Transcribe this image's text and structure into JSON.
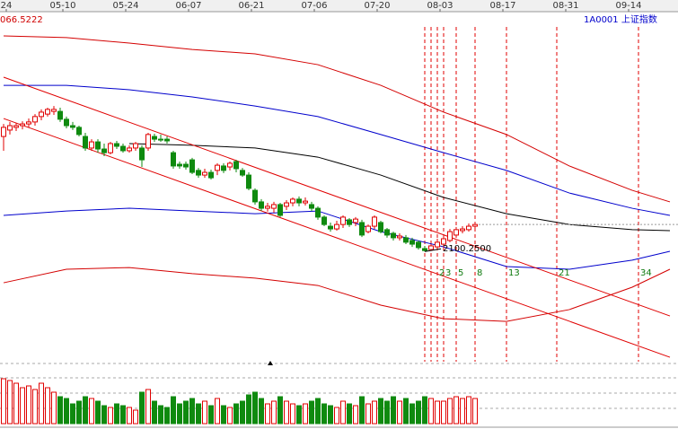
{
  "chart_data": {
    "type": "candlestick",
    "high_label": "066.5222",
    "index_name": "1A0001 上证指数",
    "low_label": "2100.2500",
    "ylim": [
      1663,
      3086.5
    ],
    "open": [
      2568,
      2594,
      2605,
      2612,
      2619,
      2627,
      2649,
      2659,
      2670,
      2670,
      2638,
      2612,
      2605,
      2568,
      2521,
      2546,
      2517,
      2502,
      2539,
      2528,
      2510,
      2521,
      2521,
      2521,
      2568,
      2557,
      2557,
      2502,
      2455,
      2455,
      2473,
      2430,
      2411,
      2422,
      2430,
      2448,
      2444,
      2466,
      2430,
      2411,
      2349,
      2302,
      2276,
      2276,
      2291,
      2284,
      2298,
      2313,
      2298,
      2291,
      2276,
      2240,
      2203,
      2192,
      2210,
      2229,
      2218,
      2218,
      2181,
      2203,
      2218,
      2189,
      2174,
      2156,
      2156,
      2145,
      2138,
      2112,
      2108,
      2119,
      2130,
      2145,
      2167,
      2185,
      2189,
      2203
    ],
    "high": [
      2619,
      2627,
      2623,
      2630,
      2641,
      2659,
      2678,
      2685,
      2692,
      2685,
      2649,
      2627,
      2612,
      2583,
      2557,
      2557,
      2539,
      2546,
      2550,
      2539,
      2532,
      2546,
      2532,
      2583,
      2579,
      2576,
      2568,
      2510,
      2466,
      2466,
      2481,
      2440,
      2437,
      2433,
      2459,
      2459,
      2466,
      2473,
      2440,
      2422,
      2357,
      2313,
      2298,
      2302,
      2298,
      2309,
      2320,
      2324,
      2320,
      2302,
      2284,
      2247,
      2218,
      2225,
      2247,
      2236,
      2240,
      2229,
      2210,
      2247,
      2225,
      2196,
      2181,
      2174,
      2167,
      2156,
      2145,
      2123,
      2130,
      2152,
      2167,
      2192,
      2200,
      2203,
      2214,
      2218
    ],
    "low": [
      2510,
      2576,
      2590,
      2597,
      2605,
      2612,
      2634,
      2649,
      2656,
      2627,
      2601,
      2594,
      2568,
      2510,
      2510,
      2502,
      2488,
      2495,
      2517,
      2502,
      2502,
      2510,
      2444,
      2510,
      2546,
      2546,
      2539,
      2437,
      2437,
      2433,
      2415,
      2400,
      2400,
      2393,
      2411,
      2419,
      2430,
      2422,
      2404,
      2349,
      2291,
      2265,
      2262,
      2258,
      2240,
      2269,
      2284,
      2284,
      2287,
      2265,
      2229,
      2203,
      2181,
      2185,
      2196,
      2200,
      2203,
      2159,
      2174,
      2192,
      2174,
      2156,
      2145,
      2145,
      2130,
      2119,
      2108,
      2100.25,
      2104,
      2108,
      2119,
      2138,
      2156,
      2174,
      2181,
      2196
    ],
    "close": [
      2605,
      2612,
      2612,
      2619,
      2627,
      2649,
      2667,
      2678,
      2678,
      2638,
      2612,
      2605,
      2576,
      2521,
      2546,
      2517,
      2502,
      2539,
      2528,
      2510,
      2521,
      2539,
      2473,
      2576,
      2557,
      2555,
      2550,
      2448,
      2448,
      2444,
      2422,
      2411,
      2422,
      2400,
      2451,
      2430,
      2459,
      2437,
      2411,
      2357,
      2302,
      2276,
      2284,
      2291,
      2247,
      2298,
      2313,
      2298,
      2305,
      2276,
      2240,
      2210,
      2192,
      2210,
      2240,
      2210,
      2232,
      2167,
      2203,
      2240,
      2181,
      2167,
      2156,
      2163,
      2138,
      2130,
      2116,
      2104,
      2123,
      2138,
      2152,
      2181,
      2189,
      2192,
      2203,
      2210
    ],
    "up_color": "#e00000",
    "down_color": "#0f8a0f",
    "volume": [
      50,
      48,
      45,
      40,
      42,
      38,
      45,
      40,
      35,
      30,
      28,
      22,
      25,
      30,
      28,
      25,
      20,
      18,
      22,
      20,
      18,
      15,
      35,
      38,
      25,
      20,
      18,
      30,
      22,
      25,
      28,
      22,
      25,
      20,
      28,
      20,
      18,
      22,
      25,
      32,
      35,
      28,
      22,
      25,
      30,
      25,
      22,
      20,
      22,
      25,
      28,
      22,
      20,
      18,
      25,
      22,
      20,
      30,
      22,
      25,
      28,
      25,
      30,
      25,
      28,
      22,
      25,
      30,
      28,
      25,
      25,
      28,
      30,
      28,
      30,
      28
    ],
    "vlim": [
      0,
      55
    ],
    "date_ticks": [
      {
        "value": 0,
        "label": "24"
      },
      {
        "value": 9,
        "label": "05-10"
      },
      {
        "value": 19,
        "label": "05-24"
      },
      {
        "value": 29,
        "label": "06-07"
      },
      {
        "value": 39,
        "label": "06-21"
      },
      {
        "value": 49,
        "label": "07-06"
      },
      {
        "value": 59,
        "label": "07-20"
      },
      {
        "value": 69,
        "label": "08-03"
      },
      {
        "value": 79,
        "label": "08-17"
      },
      {
        "value": 89,
        "label": "08-31"
      },
      {
        "value": 99,
        "label": "09-14"
      }
    ],
    "lines": [
      {
        "color": "#d40000",
        "x": [
          0,
          10,
          20,
          30,
          40,
          50,
          60,
          70,
          80,
          90,
          100,
          106
        ],
        "values": [
          2977,
          2970,
          2948,
          2922,
          2904,
          2860,
          2776,
          2667,
          2576,
          2448,
          2349,
          2302
        ]
      },
      {
        "color": "#0000cc",
        "x": [
          0,
          10,
          20,
          30,
          40,
          50,
          60,
          70,
          80,
          90,
          100,
          106
        ],
        "values": [
          2776,
          2776,
          2758,
          2729,
          2692,
          2649,
          2576,
          2502,
          2430,
          2338,
          2276,
          2247
        ]
      },
      {
        "color": "#000000",
        "x": [
          0,
          10,
          20,
          30,
          40,
          50,
          60,
          70,
          80,
          90,
          100,
          106
        ],
        "values": [
          null,
          null,
          2539,
          2532,
          2521,
          2484,
          2411,
          2320,
          2254,
          2210,
          2189,
          2185
        ]
      },
      {
        "color": "#0000cc",
        "x": [
          0,
          10,
          20,
          30,
          40,
          50,
          60,
          70,
          80,
          90,
          100,
          106
        ],
        "values": [
          2247,
          2265,
          2276,
          2265,
          2254,
          2265,
          2181,
          2119,
          2039,
          2028,
          2065,
          2101
        ]
      },
      {
        "color": "#d40000",
        "x": [
          0,
          10,
          20,
          30,
          40,
          50,
          60,
          70,
          80,
          90,
          100,
          106
        ],
        "values": [
          1973,
          2028,
          2035,
          2010,
          1992,
          1962,
          1882,
          1827,
          1816,
          1864,
          1955,
          2028
        ]
      }
    ],
    "trend_lines": [
      {
        "color": "#e00000",
        "x": [
          0,
          106
        ],
        "values": [
          2809,
          1838
        ]
      },
      {
        "color": "#e00000",
        "x": [
          0,
          106
        ],
        "values": [
          2641,
          1670
        ]
      }
    ],
    "fib_x": [
      67,
      68,
      69,
      70,
      72,
      75,
      80,
      88,
      101
    ],
    "fib_color": "#e00000",
    "fib_labels": [
      "2",
      "3",
      "5",
      "8",
      "13",
      "21",
      "34"
    ],
    "fib_label_color": "#0f7a0f"
  }
}
